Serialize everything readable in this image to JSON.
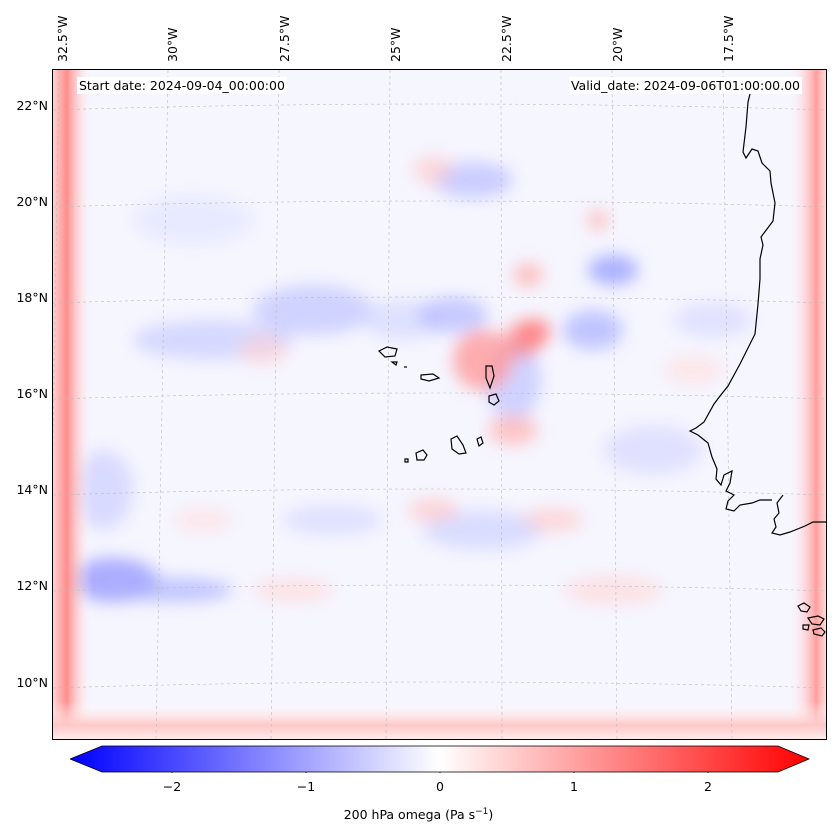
{
  "map": {
    "start_date": "Start date: 2024-09-04_00:00:00",
    "valid_date": "Valid_date: 2024-09-06T01:00:00.00",
    "lat_labels": [
      "22°N",
      "20°N",
      "18°N",
      "16°N",
      "14°N",
      "12°N",
      "10°N"
    ],
    "lon_labels": [
      "32.5°W",
      "30°W",
      "27.5°W",
      "25°W",
      "22.5°W",
      "20°W",
      "17.5°W"
    ],
    "colors": {
      "negative": "#0000ff",
      "neutral": "#ffffff",
      "positive": "#ff0000",
      "coastline": "#000000"
    }
  },
  "colorbar": {
    "title": "200 hPa omega (Pa s",
    "title_sup": "−1",
    "title_close": ")",
    "ticks": [
      "−2",
      "−1",
      "0",
      "1",
      "2"
    ],
    "range": [
      -2.75,
      2.75
    ]
  }
}
